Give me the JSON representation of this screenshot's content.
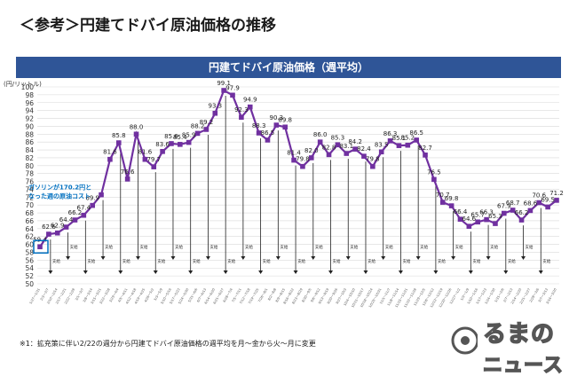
{
  "heading": "＜参考＞円建てドバイ原油価格の推移",
  "footnote": "※1：拡充策に伴い2/22の週分から円建てドバイ原油価格の週平均を月～金から火～月に変更",
  "logo": {
    "line1": "るまの",
    "line2": "ニュース"
  },
  "colors": {
    "banner": "#2f5597",
    "line": "#7030a0",
    "marker": "#7030a0",
    "grid": "#d9d9d9",
    "callout": "#0070c0"
  },
  "chart_data": {
    "type": "line",
    "title": "円建てドバイ原油価格（週平均）",
    "ylabel": "(円/リットル)",
    "xlabel": "",
    "ylim": [
      50,
      100
    ],
    "yticks": [
      50,
      52,
      54,
      56,
      58,
      60,
      62,
      64,
      66,
      68,
      70,
      72,
      74,
      76,
      78,
      80,
      82,
      84,
      86,
      88,
      90,
      92,
      94,
      96,
      98,
      100
    ],
    "grid": true,
    "legend": "none",
    "annotation": {
      "text": [
        "ガソリンが170.2円と",
        "なった週の原油コスト"
      ],
      "value": 59.4
    },
    "series": [
      {
        "values": [
          59.4,
          62.6,
          62.9,
          64.4,
          66.2,
          67.4,
          69.9,
          72.6,
          81.6,
          85.8,
          76.6,
          88.0,
          81.6,
          79.7,
          83.6,
          85.6,
          85.4,
          85.9,
          88.2,
          89.2,
          93.3,
          99.1,
          97.9,
          92.3,
          94.9,
          88.3,
          86.5,
          90.3,
          89.8,
          81.4,
          79.8,
          82.0,
          86.0,
          82.8,
          85.3,
          83.1,
          84.2,
          82.4,
          79.8,
          83.5,
          86.3,
          85.1,
          85.2,
          86.5,
          82.7,
          76.5,
          70.7,
          69.8,
          66.4,
          64.6,
          65.7,
          66.3,
          65.3,
          67.9,
          68.7,
          66.2,
          68.6,
          70.6,
          69.5,
          71.2
        ],
        "labels": [
          "59.4",
          "62.6",
          "62.9",
          "64.4",
          "66.2",
          "67.4",
          "69.9",
          "",
          "81.6",
          "85.8",
          "76.6",
          "88.0",
          "81.6",
          "79.7",
          "83.6",
          "85.6",
          "85.4",
          "85.9",
          "88.2",
          "89.2",
          "93.3",
          "99.1",
          "97.9",
          "92.3",
          "94.9",
          "88.3",
          "86.5",
          "90.3",
          "89.8",
          "81.4",
          "79.8",
          "82.0",
          "86.0",
          "82.8",
          "85.3",
          "83.1",
          "84.2",
          "82.4",
          "79.8",
          "83.5",
          "86.3",
          "85.1",
          "85.2",
          "86.5",
          "82.7",
          "76.5",
          "70.7",
          "69.8",
          "66.4",
          "64.6",
          "65.7",
          "66.3",
          "65.3",
          "67.9",
          "68.7",
          "66.2",
          "68.6",
          "70.6",
          "69.5",
          "71.2"
        ]
      }
    ],
    "subsidy_labels": [
      "支給",
      "支給",
      "支給",
      "支給",
      "支給",
      "支給",
      "支給",
      "支給",
      "支給",
      "支給",
      "支給",
      "支給",
      "支給",
      "支給",
      "支給",
      "支給",
      "支給",
      "支給",
      "支給",
      "支給",
      "支給",
      "支給",
      "支給",
      "支給",
      "支給",
      "支給",
      "支給",
      "支給",
      "支給",
      "支給"
    ],
    "categories": [
      "1/27〜1/31",
      "2/3〜2/7",
      "2/10〜2/14",
      "2/17〜2/21",
      "2/22〜2/28",
      "3/1〜3/7",
      "3/8〜3/14",
      "3/15〜3/21",
      "3/22〜3/28",
      "3/29〜4/4",
      "4/5〜4/11",
      "4/12〜4/18",
      "4/19〜4/25",
      "4/26〜5/2",
      "5/3〜5/9",
      "5/10〜5/16",
      "5/17〜5/23",
      "5/24〜5/30",
      "5/31〜6/6",
      "6/7〜6/13",
      "6/14〜6/20",
      "6/21〜6/27",
      "6/28〜7/4",
      "7/5〜7/11",
      "7/12〜7/18",
      "7/19〜7/25",
      "7/26〜8/1",
      "8/2〜8/8",
      "8/9〜8/15",
      "8/16〜8/22",
      "8/23〜8/29",
      "8/30〜9/5",
      "9/6〜9/12",
      "9/13〜9/19",
      "9/20〜9/26",
      "9/27〜10/3",
      "10/4〜10/10",
      "10/11〜10/17",
      "10/18〜10/24",
      "10/25〜10/31",
      "11/1〜11/7",
      "11/8〜11/14",
      "11/15〜11/21",
      "11/22〜11/28",
      "11/29〜12/5",
      "12/6〜12/12",
      "12/13〜12/19",
      "12/20〜12/26",
      "12/27〜1/2",
      "1/3〜1/9",
      "1/10〜1/16",
      "1/17〜1/23",
      "1/24〜1/30",
      "1/31〜2/6",
      "2/7〜2/13",
      "2/14〜2/20",
      "2/21〜2/27",
      "2/28〜3/6",
      "3/7〜3/13",
      "3/14〜3/20"
    ]
  }
}
